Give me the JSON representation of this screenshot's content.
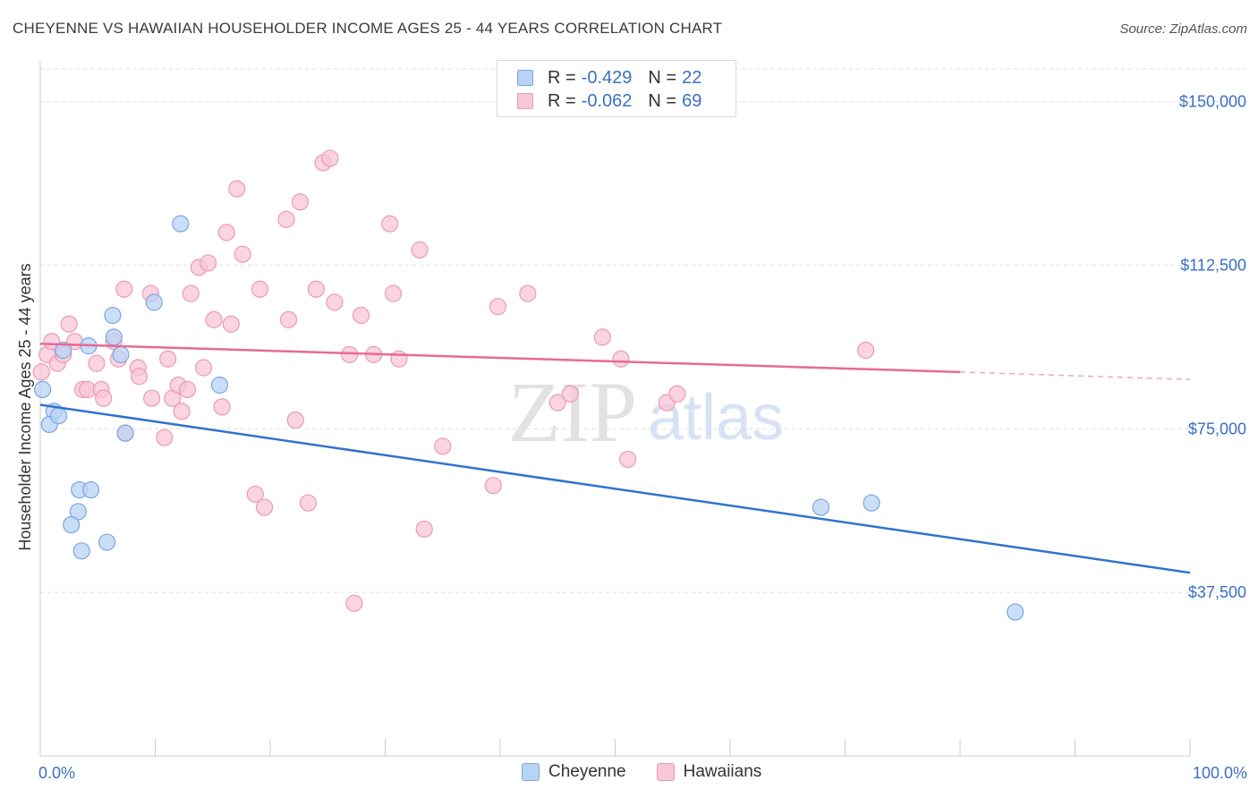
{
  "title": "CHEYENNE VS HAWAIIAN HOUSEHOLDER INCOME AGES 25 - 44 YEARS CORRELATION CHART",
  "source": "Source: ZipAtlas.com",
  "watermark": {
    "zip": "ZIP",
    "atlas": "atlas"
  },
  "colors": {
    "cheyenne_fill": "#b9d3f4",
    "cheyenne_stroke": "#7aa6e0",
    "cheyenne_line": "#2f73d0",
    "hawaiians_fill": "#f8c6d6",
    "hawaiians_stroke": "#ec9ab5",
    "hawaiians_line": "#e76a94",
    "axis_text": "#3a70c4",
    "grid": "#dddddd"
  },
  "legend": {
    "r_label": "R =",
    "n_label": "N =",
    "cheyenne": {
      "r": "-0.429",
      "n": "22"
    },
    "hawaiians": {
      "r": "-0.062",
      "n": "69"
    }
  },
  "bottom_legend": {
    "cheyenne": "Cheyenne",
    "hawaiians": "Hawaiians"
  },
  "chart_data": {
    "type": "scatter",
    "xlabel": "",
    "ylabel": "Householder Income Ages 25 - 44 years",
    "xlim": [
      0,
      100
    ],
    "ylim": [
      0,
      157500
    ],
    "x_tick_labels": [
      "0.0%",
      "100.0%"
    ],
    "y_ticks": [
      37500,
      75000,
      112500,
      150000
    ],
    "y_tick_labels": [
      "$37,500",
      "$75,000",
      "$112,500",
      "$150,000"
    ],
    "grid": true,
    "series": [
      {
        "name": "Cheyenne",
        "points": [
          [
            0.2,
            84000
          ],
          [
            1.2,
            79000
          ],
          [
            0.8,
            76000
          ],
          [
            1.6,
            78000
          ],
          [
            2.0,
            93000
          ],
          [
            3.3,
            56000
          ],
          [
            2.7,
            53000
          ],
          [
            3.4,
            61000
          ],
          [
            4.4,
            61000
          ],
          [
            3.6,
            47000
          ],
          [
            5.8,
            49000
          ],
          [
            4.2,
            94000
          ],
          [
            6.3,
            101000
          ],
          [
            6.4,
            96000
          ],
          [
            7.0,
            92000
          ],
          [
            7.4,
            74000
          ],
          [
            9.9,
            104000
          ],
          [
            12.2,
            122000
          ],
          [
            15.6,
            85000
          ],
          [
            67.9,
            57000
          ],
          [
            72.3,
            58000
          ],
          [
            84.8,
            33000
          ]
        ],
        "trend": {
          "x0": 0,
          "y0": 80500,
          "x1": 100,
          "y1": 42000
        }
      },
      {
        "name": "Hawaiians",
        "points": [
          [
            0.1,
            88000
          ],
          [
            0.6,
            92000
          ],
          [
            1.0,
            95000
          ],
          [
            1.5,
            90000
          ],
          [
            2.0,
            92000
          ],
          [
            2.5,
            99000
          ],
          [
            3.0,
            95000
          ],
          [
            3.7,
            84000
          ],
          [
            4.1,
            84000
          ],
          [
            4.9,
            90000
          ],
          [
            5.3,
            84000
          ],
          [
            5.5,
            82000
          ],
          [
            6.4,
            95000
          ],
          [
            6.8,
            91000
          ],
          [
            7.4,
            74000
          ],
          [
            7.3,
            107000
          ],
          [
            8.5,
            89000
          ],
          [
            8.6,
            87000
          ],
          [
            9.7,
            82000
          ],
          [
            9.6,
            106000
          ],
          [
            10.8,
            73000
          ],
          [
            11.1,
            91000
          ],
          [
            11.5,
            82000
          ],
          [
            12.0,
            85000
          ],
          [
            12.3,
            79000
          ],
          [
            12.8,
            84000
          ],
          [
            13.1,
            106000
          ],
          [
            14.2,
            89000
          ],
          [
            13.8,
            112000
          ],
          [
            14.6,
            113000
          ],
          [
            15.1,
            100000
          ],
          [
            15.8,
            80000
          ],
          [
            16.2,
            120000
          ],
          [
            16.6,
            99000
          ],
          [
            17.1,
            130000
          ],
          [
            17.6,
            115000
          ],
          [
            18.7,
            60000
          ],
          [
            19.1,
            107000
          ],
          [
            19.5,
            57000
          ],
          [
            21.4,
            123000
          ],
          [
            21.6,
            100000
          ],
          [
            22.2,
            77000
          ],
          [
            22.6,
            127000
          ],
          [
            23.3,
            58000
          ],
          [
            24.0,
            107000
          ],
          [
            24.6,
            136000
          ],
          [
            25.2,
            137000
          ],
          [
            25.6,
            104000
          ],
          [
            26.9,
            92000
          ],
          [
            27.3,
            35000
          ],
          [
            27.9,
            101000
          ],
          [
            29.0,
            92000
          ],
          [
            30.4,
            122000
          ],
          [
            30.7,
            106000
          ],
          [
            31.2,
            91000
          ],
          [
            33.0,
            116000
          ],
          [
            33.4,
            52000
          ],
          [
            35.0,
            71000
          ],
          [
            39.4,
            62000
          ],
          [
            39.8,
            103000
          ],
          [
            42.4,
            106000
          ],
          [
            45.0,
            81000
          ],
          [
            46.1,
            83000
          ],
          [
            48.9,
            96000
          ],
          [
            50.5,
            91000
          ],
          [
            51.1,
            68000
          ],
          [
            54.5,
            81000
          ],
          [
            55.4,
            83000
          ],
          [
            71.8,
            93000
          ]
        ],
        "trend": {
          "x0": 0,
          "y0": 94500,
          "x1": 80,
          "y1": 88000,
          "dash_to": {
            "x": 100,
            "y": 86300
          }
        }
      }
    ]
  }
}
